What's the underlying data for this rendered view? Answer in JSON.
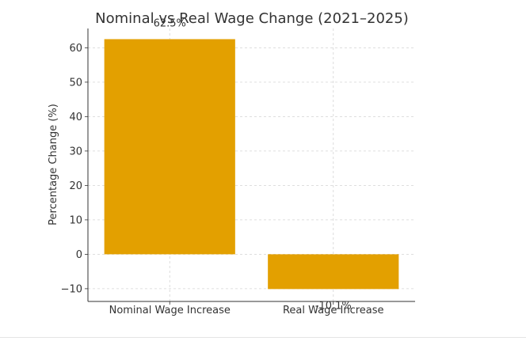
{
  "chart_data": {
    "type": "bar",
    "title": "Nominal vs Real Wage Change (2021–2025)",
    "xlabel": "",
    "ylabel": "Percentage Change (%)",
    "categories": [
      "Nominal Wage Increase",
      "Real Wage Increase"
    ],
    "values": [
      62.5,
      -10.1
    ],
    "data_labels": [
      "62.5%",
      "-10.1%"
    ],
    "yticks": [
      -10,
      0,
      10,
      20,
      30,
      40,
      50,
      60
    ],
    "ytick_labels": [
      "−10",
      "0",
      "10",
      "20",
      "30",
      "40",
      "50",
      "60"
    ],
    "ylim": [
      -13.7,
      65.6
    ],
    "grid": true,
    "bar_color": "#e3a000",
    "grid_color": "#d4d4d4",
    "text_color": "#333333"
  }
}
